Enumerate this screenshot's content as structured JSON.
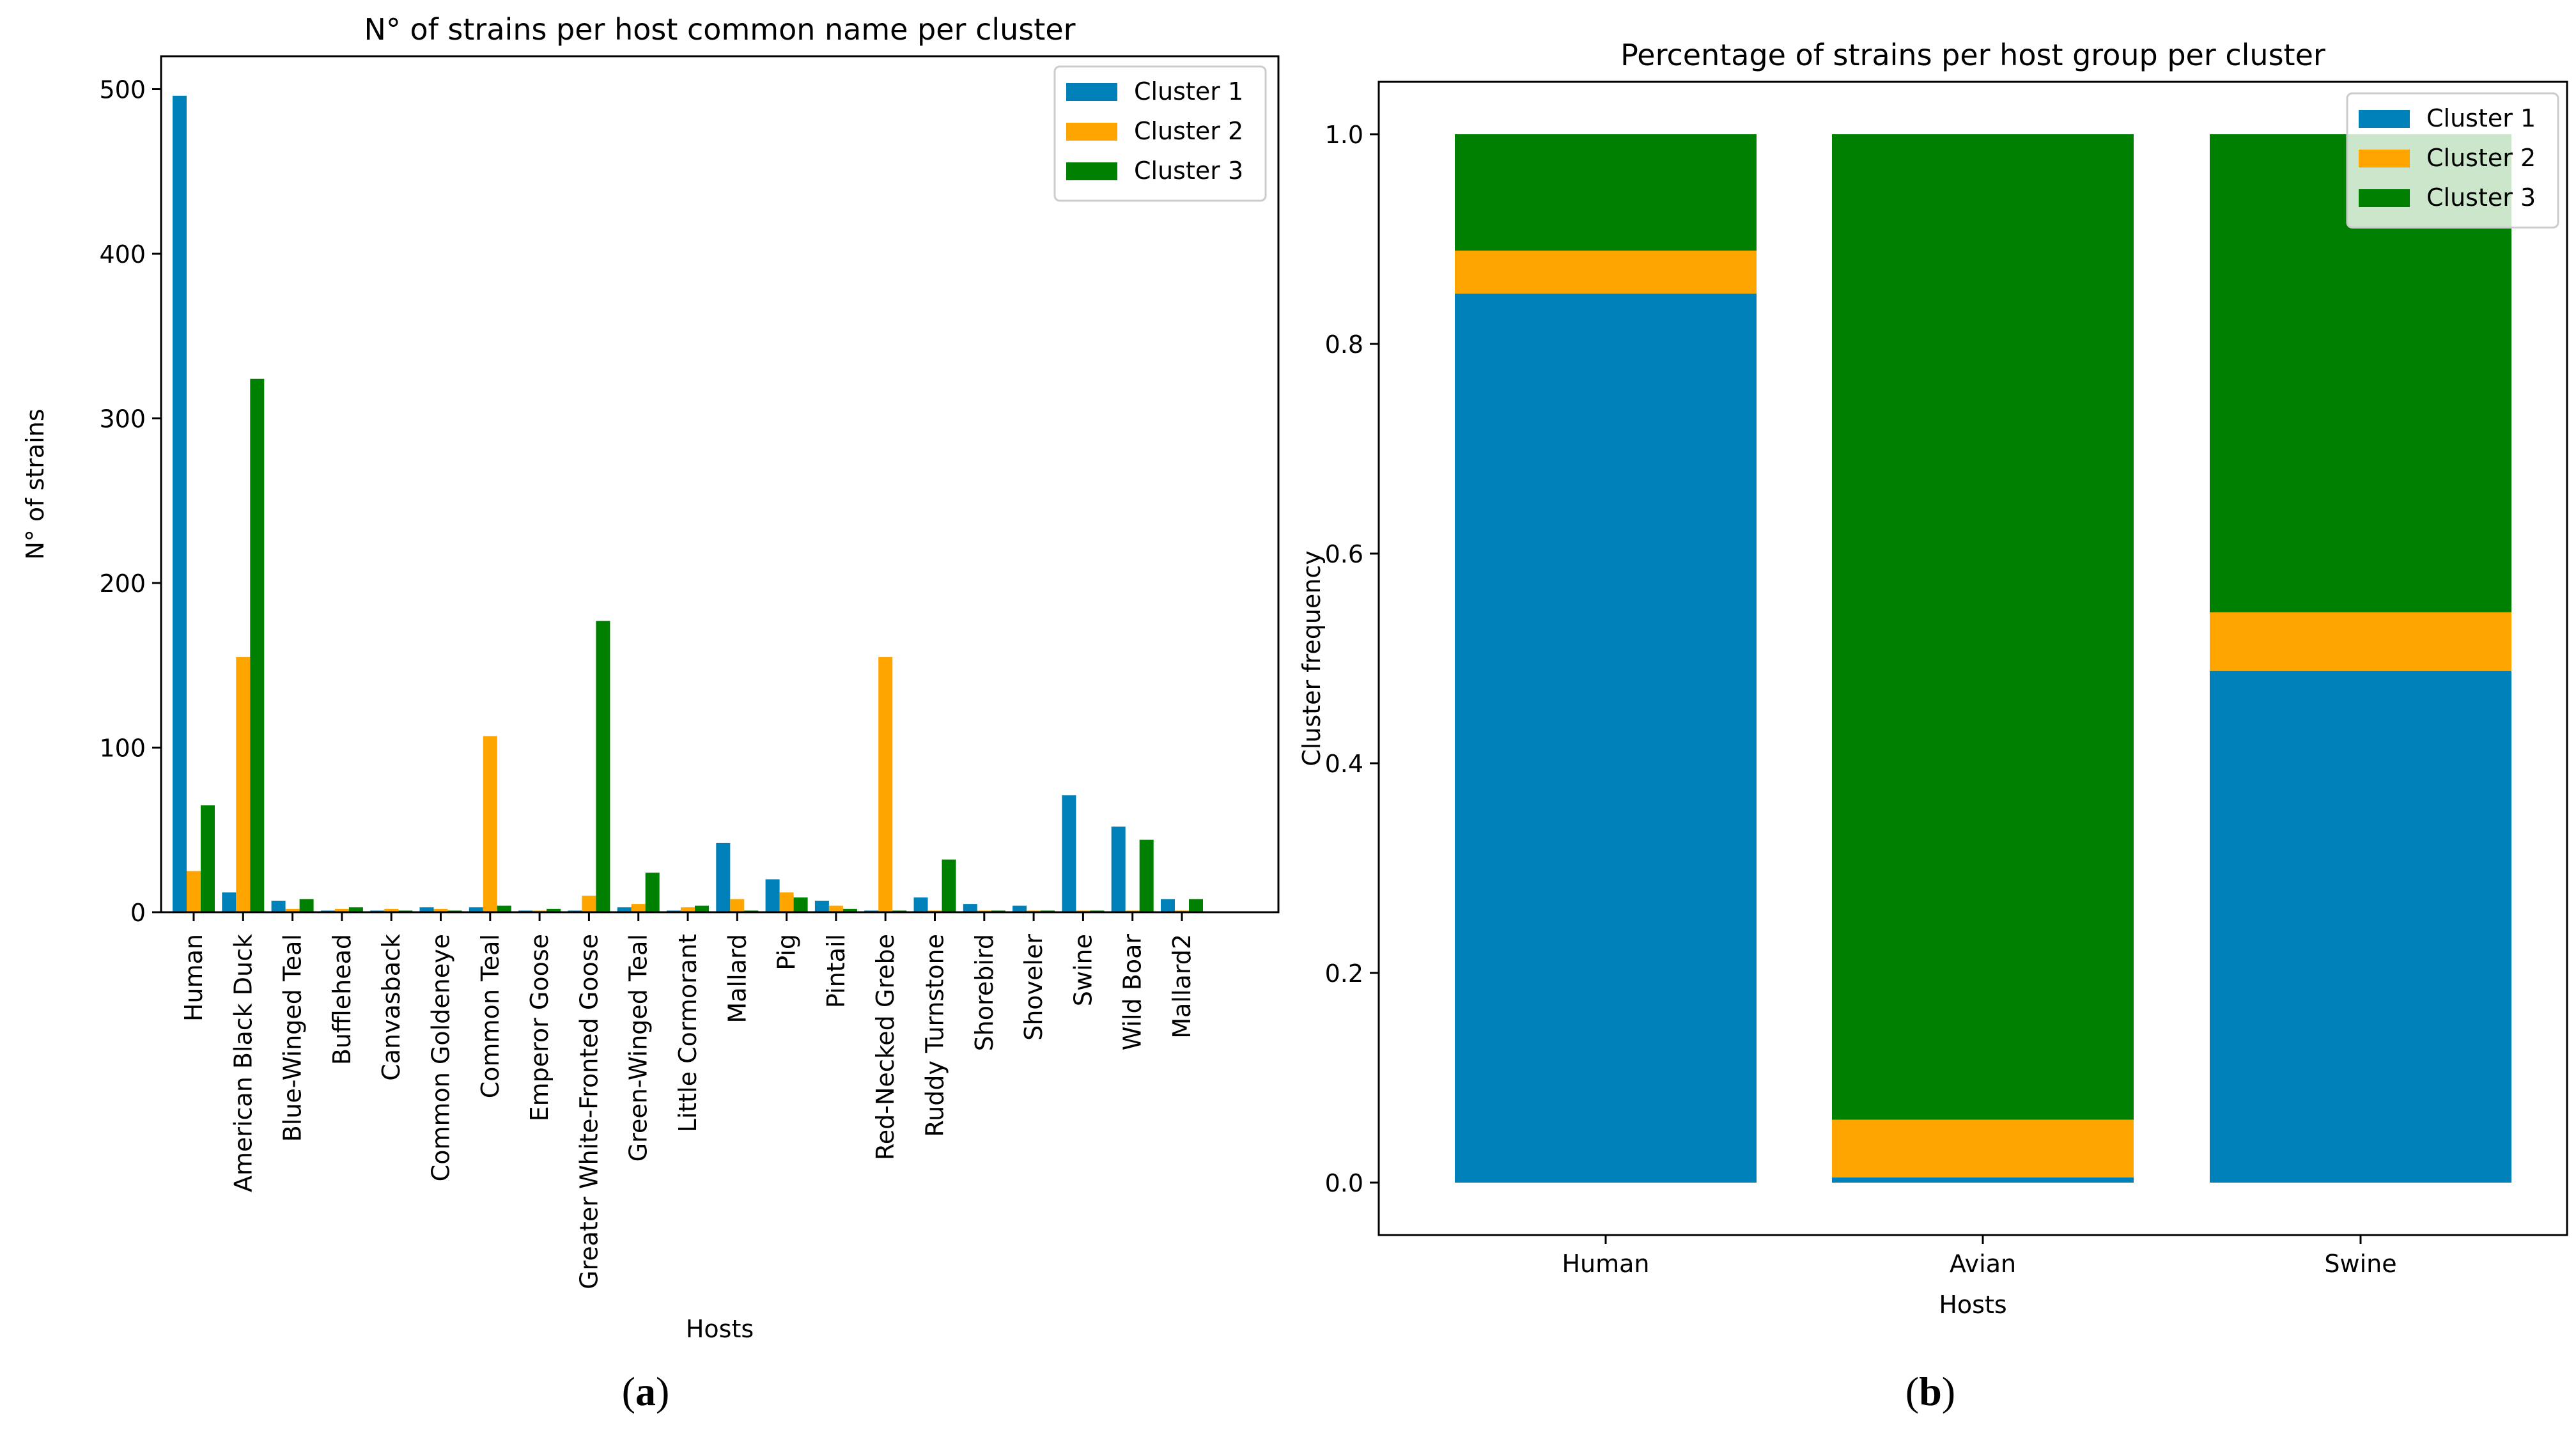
{
  "colors": {
    "cluster1": "#0080b8",
    "cluster2": "#ffa500",
    "cluster3": "#008000"
  },
  "chart_data": [
    {
      "type": "bar",
      "title": "N° of strains per host common name per cluster",
      "xlabel": "Hosts",
      "ylabel": "N° of strains",
      "ylim": [
        0,
        520
      ],
      "yticks": [
        0,
        100,
        200,
        300,
        400,
        500
      ],
      "legend": "top-right",
      "categories": [
        "Human",
        "American Black Duck",
        "Blue-Winged Teal",
        "Bufflehead",
        "Canvasback",
        "Common Goldeneye",
        "Common Teal",
        "Emperor Goose",
        "Greater White-Fronted Goose",
        "Green-Winged Teal",
        "Little Cormorant",
        "Mallard",
        "Pig",
        "Pintail",
        "Red-Necked Grebe",
        "Ruddy Turnstone",
        "Shorebird",
        "Shoveler",
        "Swine",
        "Wild Boar",
        "Mallard2"
      ],
      "series": [
        {
          "name": "Cluster 1",
          "values": [
            496,
            12,
            7,
            1,
            1,
            3,
            3,
            1,
            1,
            3,
            1,
            42,
            20,
            7,
            1,
            9,
            5,
            4,
            71,
            52,
            8
          ]
        },
        {
          "name": "Cluster 2",
          "values": [
            25,
            155,
            2,
            2,
            2,
            2,
            107,
            1,
            10,
            5,
            3,
            8,
            12,
            4,
            155,
            1,
            1,
            1,
            1,
            1,
            1
          ]
        },
        {
          "name": "Cluster 3",
          "values": [
            65,
            324,
            8,
            3,
            1,
            1,
            4,
            2,
            177,
            24,
            4,
            1,
            9,
            2,
            1,
            32,
            1,
            1,
            1,
            44,
            8
          ]
        }
      ],
      "caption": "(a)"
    },
    {
      "type": "bar",
      "stacked": true,
      "title": "Percentage of strains per host group per cluster",
      "xlabel": "Hosts",
      "ylabel": "Cluster frequency",
      "ylim": [
        0,
        1.0
      ],
      "yticks": [
        "0.0",
        "0.2",
        "0.4",
        "0.6",
        "0.8",
        "1.0"
      ],
      "legend": "top-right",
      "categories": [
        "Human",
        "Avian",
        "Swine"
      ],
      "series": [
        {
          "name": "Cluster 1",
          "values": [
            0.848,
            0.005,
            0.488
          ]
        },
        {
          "name": "Cluster 2",
          "values": [
            0.041,
            0.055,
            0.056
          ]
        },
        {
          "name": "Cluster 3",
          "values": [
            0.111,
            0.94,
            0.456
          ]
        }
      ],
      "caption": "(b)"
    }
  ]
}
